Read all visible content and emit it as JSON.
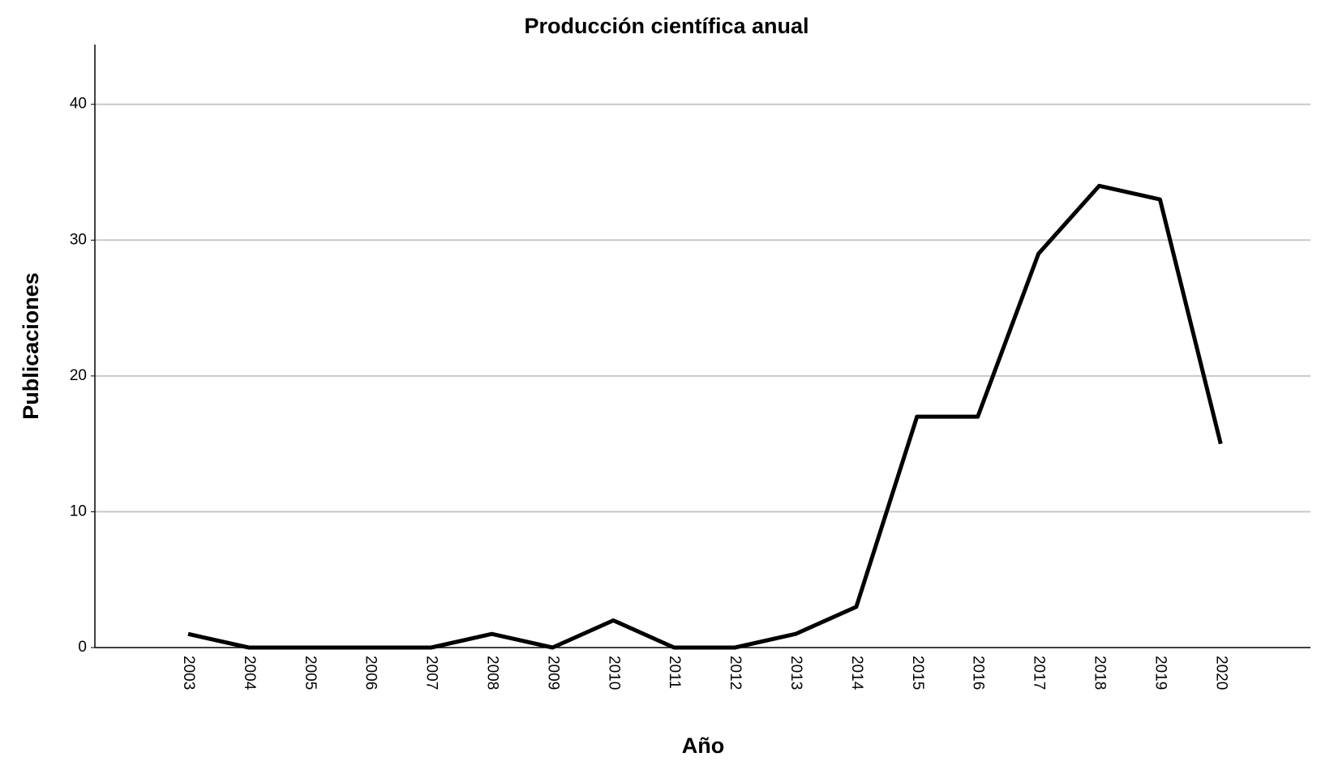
{
  "chart_data": {
    "type": "line",
    "title": "Producción científica anual",
    "x_label": "Año",
    "y_label": "Publicaciones",
    "categories": [
      "2003",
      "2004",
      "2005",
      "2006",
      "2007",
      "2008",
      "2009",
      "2010",
      "2011",
      "2012",
      "2013",
      "2014",
      "2015",
      "2016",
      "2017",
      "2018",
      "2019",
      "2020"
    ],
    "values": [
      1,
      0,
      0,
      0,
      0,
      1,
      0,
      2,
      0,
      0,
      1,
      3,
      17,
      17,
      29,
      34,
      33,
      15
    ],
    "color": "#000000",
    "ylim": [
      0,
      44.4
    ],
    "yticks": [
      0,
      10,
      20,
      30,
      40
    ],
    "grid": true
  }
}
